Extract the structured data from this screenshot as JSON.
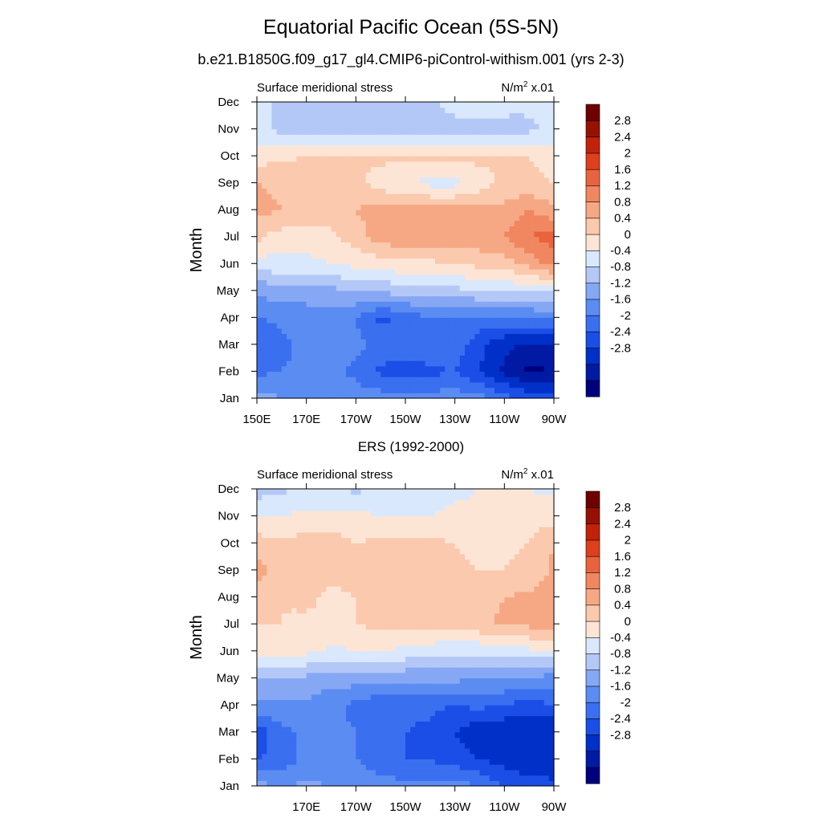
{
  "title": "Equatorial Pacific Ocean (5S-5N)",
  "subtitle": "b.e21.B1850G.f09_g17_gl4.CMIP6-piControl-withism.001 (yrs 2-3)",
  "colors": [
    "#00007f",
    "#001aa4",
    "#0030c8",
    "#1a4ee6",
    "#3a6ff0",
    "#5b8cf2",
    "#86a8f4",
    "#b4c8f7",
    "#d9e8fc",
    "#fde5d6",
    "#fbc9ad",
    "#f6a884",
    "#f08761",
    "#e9643e",
    "#de3f1c",
    "#c2220b",
    "#971103",
    "#6e0000"
  ],
  "chart_data": [
    {
      "type": "heatmap",
      "name": "model",
      "title": "",
      "left_label": "Surface meridional stress",
      "units_label": "N/m",
      "units_sup": "2",
      "units_scale": "x.01",
      "ylabel": "Month",
      "xlabel": "",
      "x": [
        150,
        160,
        170,
        180,
        190,
        200,
        210,
        220,
        230,
        240,
        250,
        260,
        270
      ],
      "x_ticks": [
        150,
        170,
        190,
        210,
        230,
        250,
        270
      ],
      "x_tick_labels": [
        "150E",
        "170E",
        "170W",
        "150W",
        "130W",
        "110W",
        "90W"
      ],
      "y_tick_labels": [
        "Jan",
        "Feb",
        "Mar",
        "Apr",
        "May",
        "Jun",
        "Jul",
        "Aug",
        "Sep",
        "Oct",
        "Nov",
        "Dec"
      ],
      "levels": [
        -3.2,
        -2.8,
        -2.4,
        -2.0,
        -1.6,
        -1.2,
        -0.8,
        -0.4,
        0,
        0.4,
        0.8,
        1.2,
        1.6,
        2.0,
        2.4,
        2.8,
        3.2
      ],
      "colorbar_labels": [
        "2.8",
        "2.4",
        "2",
        "1.6",
        "1.2",
        "0.8",
        "0.4",
        "0",
        "-0.4",
        "-0.8",
        "-1.2",
        "-1.6",
        "-2",
        "-2.4",
        "-2.8"
      ],
      "values": [
        [
          -0.6,
          -0.8,
          -0.8,
          -0.9,
          -1.0,
          -1.0,
          -0.9,
          -1.0,
          -1.0,
          -1.0,
          -1.4,
          -1.7,
          -1.8
        ],
        [
          -1.3,
          -1.2,
          -1.1,
          -1.1,
          -1.3,
          -1.7,
          -1.9,
          -1.7,
          -1.6,
          -2.0,
          -2.5,
          -2.9,
          -2.8
        ],
        [
          -1.6,
          -1.3,
          -1.1,
          -1.0,
          -1.1,
          -1.3,
          -1.3,
          -1.2,
          -1.3,
          -1.9,
          -2.3,
          -2.5,
          -2.4
        ],
        [
          -1.2,
          -1.1,
          -1.0,
          -1.0,
          -1.2,
          -1.7,
          -1.5,
          -1.2,
          -1.3,
          -1.3,
          -1.3,
          -1.2,
          -1.1
        ],
        [
          -0.7,
          -0.6,
          -0.6,
          -0.5,
          -0.4,
          -0.3,
          -0.2,
          -0.1,
          -0.1,
          0,
          0.1,
          0.1,
          0.1
        ],
        [
          0.2,
          0.3,
          0.3,
          0.4,
          0.5,
          0.6,
          0.7,
          0.7,
          0.8,
          0.9,
          1.0,
          1.3,
          1.8
        ],
        [
          0.9,
          0.6,
          0.6,
          0.7,
          1.0,
          1.4,
          1.5,
          1.5,
          1.5,
          1.5,
          1.6,
          2.0,
          2.2
        ],
        [
          1.3,
          1.2,
          1.2,
          1.0,
          1.2,
          1.4,
          1.4,
          1.3,
          1.3,
          1.3,
          1.3,
          1.6,
          1.3
        ],
        [
          1.2,
          1.1,
          1.1,
          1.0,
          0.9,
          0.6,
          0.4,
          0.3,
          0.3,
          0.6,
          0.9,
          0.9,
          0.8
        ],
        [
          0.6,
          0.7,
          0.8,
          0.9,
          0.9,
          0.9,
          0.9,
          0.9,
          0.9,
          0.9,
          0.9,
          0.8,
          0.6
        ],
        [
          0.1,
          -0.1,
          -0.2,
          -0.2,
          -0.2,
          -0.2,
          -0.2,
          -0.2,
          -0.2,
          -0.2,
          -0.2,
          -0.1,
          0.1
        ],
        [
          0.2,
          -0.1,
          -0.1,
          -0.1,
          -0.1,
          -0.1,
          -0.1,
          -0.1,
          0.2,
          0.3,
          0.2,
          0.1,
          0.2
        ]
      ]
    },
    {
      "type": "heatmap",
      "name": "ers",
      "title": "ERS (1992-2000)",
      "left_label": "Surface meridional stress",
      "units_label": "N/m",
      "units_sup": "2",
      "units_scale": "x.01",
      "ylabel": "Month",
      "xlabel": "",
      "x": [
        150,
        160,
        170,
        180,
        190,
        200,
        210,
        220,
        230,
        240,
        250,
        260,
        270
      ],
      "x_ticks": [
        170,
        190,
        210,
        230,
        250,
        270
      ],
      "x_tick_labels": [
        "170E",
        "170W",
        "150W",
        "130W",
        "110W",
        "90W"
      ],
      "y_tick_labels": [
        "Jan",
        "Feb",
        "Mar",
        "Apr",
        "May",
        "Jun",
        "Jul",
        "Aug",
        "Sep",
        "Oct",
        "Nov",
        "Dec"
      ],
      "levels": [
        -3.2,
        -2.8,
        -2.4,
        -2.0,
        -1.6,
        -1.2,
        -0.8,
        -0.4,
        0,
        0.4,
        0.8,
        1.2,
        1.6,
        2.0,
        2.4,
        2.8,
        3.2
      ],
      "colorbar_labels": [
        "2.8",
        "2.4",
        "2",
        "1.6",
        "1.2",
        "0.8",
        "0.4",
        "0",
        "-0.4",
        "-0.8",
        "-1.2",
        "-1.6",
        "-2",
        "-2.4",
        "-2.8"
      ],
      "values": [
        [
          -0.6,
          -0.9,
          -0.7,
          -0.8,
          -0.9,
          -1.0,
          -1.1,
          -1.1,
          -1.0,
          -1.2,
          -1.6,
          -1.8,
          -1.9
        ],
        [
          -1.6,
          -1.5,
          -1.0,
          -1.2,
          -1.2,
          -1.5,
          -1.6,
          -1.6,
          -1.8,
          -2.0,
          -2.2,
          -2.3,
          -2.3
        ],
        [
          -1.9,
          -1.3,
          -1.1,
          -1.1,
          -1.2,
          -1.5,
          -1.6,
          -1.7,
          -2.0,
          -2.3,
          -2.4,
          -2.3,
          -2.4
        ],
        [
          -0.9,
          -0.9,
          -0.9,
          -1.1,
          -1.3,
          -1.5,
          -1.5,
          -1.5,
          -1.6,
          -1.5,
          -1.6,
          -1.8,
          -1.6
        ],
        [
          -0.4,
          -0.4,
          -0.5,
          -0.6,
          -0.6,
          -0.7,
          -0.7,
          -0.7,
          -0.7,
          -0.8,
          -0.8,
          -0.8,
          -1.0
        ],
        [
          0.5,
          0.6,
          0.5,
          0.3,
          0.4,
          0.4,
          0.3,
          0.2,
          0.1,
          0.1,
          0.2,
          0.3,
          0.3
        ],
        [
          0.8,
          0.8,
          0.7,
          0.8,
          0.8,
          0.9,
          0.9,
          0.9,
          1.0,
          1.1,
          1.3,
          1.3,
          1.5
        ],
        [
          0.9,
          0.8,
          0.9,
          0.7,
          0.8,
          0.9,
          0.9,
          0.9,
          1.0,
          1.0,
          1.2,
          1.3,
          1.4
        ],
        [
          1.4,
          1.0,
          1.1,
          0.9,
          1.0,
          0.9,
          0.9,
          0.9,
          0.9,
          0.8,
          0.8,
          0.9,
          1.3
        ],
        [
          1.0,
          0.9,
          1.0,
          1.0,
          0.8,
          0.9,
          0.9,
          0.9,
          0.8,
          0.6,
          0.7,
          0.8,
          1.2
        ],
        [
          0.4,
          0.4,
          0.5,
          0.5,
          0.5,
          0.4,
          0.4,
          0.4,
          0.5,
          0.5,
          0.7,
          0.7,
          0.6
        ],
        [
          -0.2,
          -0.1,
          0.1,
          0.1,
          -0.1,
          0.1,
          0.2,
          0.2,
          0.3,
          0.4,
          0.4,
          0.4,
          0.3
        ]
      ]
    }
  ]
}
